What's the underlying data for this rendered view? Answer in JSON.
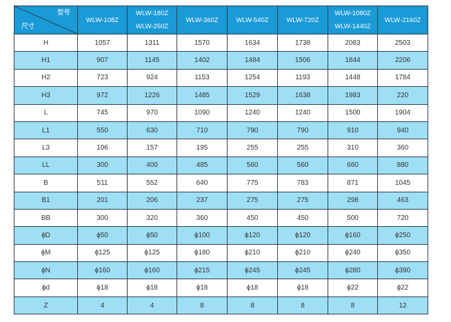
{
  "header": {
    "corner_top": "型号",
    "corner_bottom": "尺寸",
    "models": [
      [
        "WLW-108Z"
      ],
      [
        "WLW-180Z",
        "WLW-250Z"
      ],
      [
        "WLW-360Z"
      ],
      [
        "WLW-540Z"
      ],
      [
        "WLW-720Z"
      ],
      [
        "WLW-1080Z",
        "WLW-1440Z"
      ],
      [
        "WLW-2160Z"
      ]
    ]
  },
  "rows": [
    {
      "label": "H",
      "values": [
        "1057",
        "1311",
        "1570",
        "1634",
        "1738",
        "2083",
        "2503"
      ]
    },
    {
      "label": "H1",
      "values": [
        "907",
        "1145",
        "1402",
        "1484",
        "1506",
        "1844",
        "2206"
      ]
    },
    {
      "label": "H2",
      "values": [
        "723",
        "924",
        "1153",
        "1254",
        "1193",
        "1448",
        "1784"
      ]
    },
    {
      "label": "H3",
      "values": [
        "972",
        "1226",
        "1485",
        "1529",
        "1638",
        "1983",
        "220"
      ]
    },
    {
      "label": "L",
      "values": [
        "745",
        "970",
        "1090",
        "1240",
        "1240",
        "1500",
        "1904"
      ]
    },
    {
      "label": "L1",
      "values": [
        "550",
        "630",
        "710",
        "790",
        "790",
        "910",
        "940"
      ]
    },
    {
      "label": "L3",
      "values": [
        "106",
        "157",
        "195",
        "255",
        "255",
        "310",
        "360"
      ]
    },
    {
      "label": "LL",
      "values": [
        "300",
        "400",
        "485",
        "560",
        "560",
        "660",
        "880"
      ]
    },
    {
      "label": "B",
      "values": [
        "511",
        "552",
        "640",
        "775",
        "783",
        "871",
        "1045"
      ]
    },
    {
      "label": "B1",
      "values": [
        "201",
        "206",
        "237",
        "275",
        "275",
        "298",
        "463"
      ]
    },
    {
      "label": "BB",
      "values": [
        "300",
        "320",
        "360",
        "450",
        "450",
        "500",
        "720"
      ]
    },
    {
      "label": "ϕD",
      "values": [
        "ϕ50",
        "ϕ50",
        "ϕ100",
        "ϕ120",
        "ϕ120",
        "ϕ160",
        "ϕ250"
      ]
    },
    {
      "label": "ϕM",
      "values": [
        "ϕ125",
        "ϕ125",
        "ϕ180",
        "ϕ210",
        "ϕ210",
        "ϕ240",
        "ϕ350"
      ]
    },
    {
      "label": "ϕN",
      "values": [
        "ϕ160",
        "ϕ160",
        "ϕ215",
        "ϕ245",
        "ϕ245",
        "ϕ280",
        "ϕ390"
      ]
    },
    {
      "label": "ϕd",
      "values": [
        "ϕ18",
        "ϕ18",
        "ϕ18",
        "ϕ18",
        "ϕ18",
        "ϕ22",
        "ϕ22"
      ]
    },
    {
      "label": "Z",
      "values": [
        "4",
        "4",
        "8",
        "8",
        "8",
        "8",
        "12"
      ]
    }
  ],
  "colors": {
    "header": "#1a9ad6",
    "alt_row": "#9fdff6",
    "border": "#2e3f4a"
  }
}
